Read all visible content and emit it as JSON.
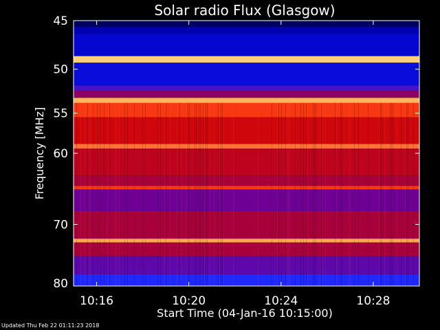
{
  "chart_data": {
    "type": "heatmap",
    "title": "Solar radio Flux (Glasgow)",
    "xlabel": "Start Time (04-Jan-16 10:15:00)",
    "ylabel": "Frequency [MHz]",
    "x_ticks": [
      "10:16",
      "10:20",
      "10:24",
      "10:28"
    ],
    "x_tick_minutes": [
      1,
      5,
      9,
      13
    ],
    "xlim_minutes": [
      0,
      15
    ],
    "y_ticks": [
      45,
      50,
      55,
      60,
      70,
      80
    ],
    "ylim": [
      45,
      80
    ],
    "y_scale": "log",
    "colors": {
      "background": "#000000",
      "low": "#0a0a8c",
      "mid": "#b4001e",
      "high": "#ffe070"
    },
    "bands": [
      {
        "from": 45.0,
        "to": 45.6,
        "level": 0.05
      },
      {
        "from": 45.6,
        "to": 46.3,
        "level": 0.15
      },
      {
        "from": 46.3,
        "to": 48.6,
        "level": 0.2
      },
      {
        "from": 48.6,
        "to": 49.3,
        "level": 0.95
      },
      {
        "from": 49.3,
        "to": 51.8,
        "level": 0.22
      },
      {
        "from": 51.8,
        "to": 52.4,
        "level": 0.35
      },
      {
        "from": 52.4,
        "to": 53.2,
        "level": 0.45
      },
      {
        "from": 53.2,
        "to": 53.8,
        "level": 0.9
      },
      {
        "from": 53.8,
        "to": 55.5,
        "level": 0.75
      },
      {
        "from": 55.5,
        "to": 58.8,
        "level": 0.6
      },
      {
        "from": 58.8,
        "to": 59.4,
        "level": 0.82
      },
      {
        "from": 59.4,
        "to": 63.0,
        "level": 0.55
      },
      {
        "from": 63.0,
        "to": 64.4,
        "level": 0.5
      },
      {
        "from": 64.4,
        "to": 64.9,
        "level": 0.75
      },
      {
        "from": 64.9,
        "to": 68.0,
        "level": 0.4
      },
      {
        "from": 68.0,
        "to": 72.2,
        "level": 0.5
      },
      {
        "from": 72.2,
        "to": 72.8,
        "level": 0.88
      },
      {
        "from": 72.8,
        "to": 75.0,
        "level": 0.5
      },
      {
        "from": 75.0,
        "to": 78.0,
        "level": 0.38
      },
      {
        "from": 78.0,
        "to": 80.0,
        "level": 0.3
      }
    ]
  },
  "footer": {
    "updated": "Updated Thu Feb 22 01:11:23 2018"
  }
}
